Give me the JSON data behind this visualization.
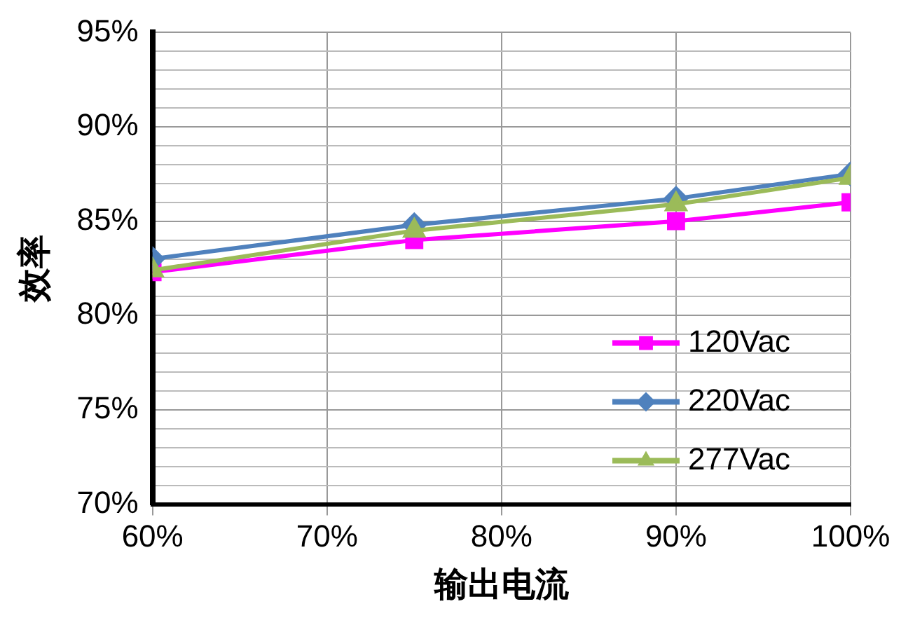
{
  "chart_data": {
    "type": "line",
    "xlabel": "输出电流",
    "ylabel": "效率",
    "x": [
      60,
      75,
      90,
      100
    ],
    "series": [
      {
        "name": "120Vac",
        "color": "#ff00ff",
        "values": [
          82.3,
          84.0,
          85.0,
          86.0
        ],
        "marker": "square"
      },
      {
        "name": "220Vac",
        "color": "#4f81bd",
        "values": [
          83.0,
          84.8,
          86.2,
          87.5
        ],
        "marker": "diamond"
      },
      {
        "name": "277Vac",
        "color": "#9bbb59",
        "values": [
          82.4,
          84.5,
          85.9,
          87.3
        ],
        "marker": "triangle"
      }
    ],
    "xlim": [
      60,
      100
    ],
    "xticks": [
      {
        "value": 60,
        "label": "60%"
      },
      {
        "value": 70,
        "label": "70%"
      },
      {
        "value": 80,
        "label": "80%"
      },
      {
        "value": 90,
        "label": "90%"
      },
      {
        "value": 100,
        "label": "100%"
      }
    ],
    "ylim": [
      70,
      95
    ],
    "yticks": [
      {
        "value": 70,
        "label": "70%"
      },
      {
        "value": 71,
        "label": null
      },
      {
        "value": 72,
        "label": null
      },
      {
        "value": 73,
        "label": null
      },
      {
        "value": 74,
        "label": null
      },
      {
        "value": 75,
        "label": "75%"
      },
      {
        "value": 76,
        "label": null
      },
      {
        "value": 77,
        "label": null
      },
      {
        "value": 78,
        "label": null
      },
      {
        "value": 79,
        "label": null
      },
      {
        "value": 80,
        "label": "80%"
      },
      {
        "value": 81,
        "label": null
      },
      {
        "value": 82,
        "label": null
      },
      {
        "value": 83,
        "label": null
      },
      {
        "value": 84,
        "label": null
      },
      {
        "value": 85,
        "label": "85%"
      },
      {
        "value": 86,
        "label": null
      },
      {
        "value": 87,
        "label": null
      },
      {
        "value": 88,
        "label": null
      },
      {
        "value": 89,
        "label": null
      },
      {
        "value": 90,
        "label": "90%"
      },
      {
        "value": 91,
        "label": null
      },
      {
        "value": 92,
        "label": null
      },
      {
        "value": 93,
        "label": null
      },
      {
        "value": 94,
        "label": null
      },
      {
        "value": 95,
        "label": "95%"
      }
    ],
    "grid": true,
    "legend": "bottom right",
    "line_style": "solid"
  }
}
